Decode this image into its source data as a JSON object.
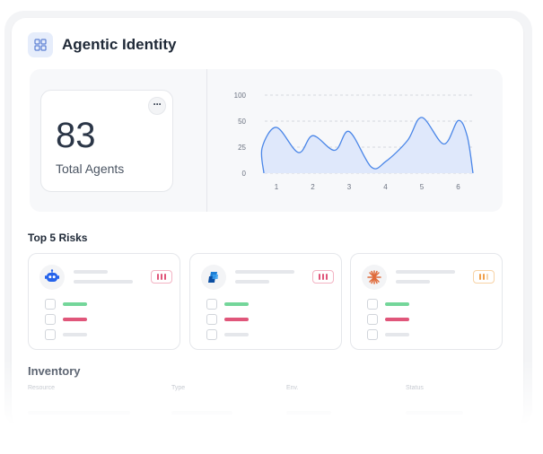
{
  "header": {
    "title": "Agentic Identity",
    "icon": "dashboard-grid-icon"
  },
  "stats": {
    "value": "83",
    "label": "Total Agents",
    "menu_label": "···"
  },
  "chart_data": {
    "type": "area",
    "x": [
      1,
      2,
      3,
      4,
      5,
      6
    ],
    "y_ticks": [
      "100",
      "50",
      "25",
      "0"
    ],
    "x_ticks": [
      "1",
      "2",
      "3",
      "4",
      "5",
      "6"
    ],
    "series": [
      {
        "values": [
          44,
          36,
          40,
          11,
          57,
          51
        ]
      }
    ],
    "color": "#4a86e8",
    "fill": "#dfe8fb",
    "grid": true
  },
  "risks": {
    "title": "Top 5 Risks",
    "cards": [
      {
        "icon": "robot-icon",
        "icon_color": "#2563eb",
        "severity_color": "#e0567a"
      },
      {
        "icon": "azure-ai-icon",
        "icon_color": "#1d7fd6",
        "severity_color": "#e0567a"
      },
      {
        "icon": "asterisk-burst-icon",
        "icon_color": "#e06b3b",
        "severity_color": "#f0a04b"
      }
    ],
    "status_colors": {
      "ok": "#74d69a",
      "critical": "#e0567a"
    }
  },
  "inventory": {
    "title": "Inventory",
    "columns": [
      "Resource",
      "Type",
      "Env.",
      "Status"
    ]
  }
}
